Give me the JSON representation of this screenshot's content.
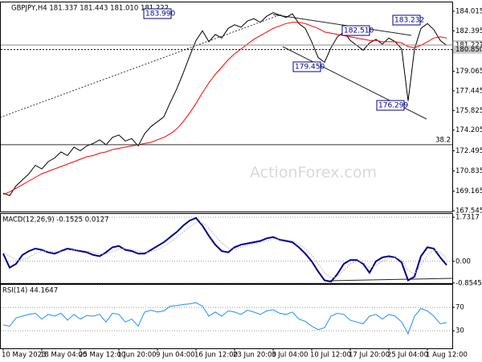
{
  "chart_data": [
    {
      "type": "line",
      "title": "GBPJPY,H4 181.337 181.443 181.010 181.222",
      "watermark": "ActionForex.com",
      "categories": [
        "10 May 2023",
        null,
        null,
        null,
        null,
        null,
        "18 May 04:00",
        null,
        null,
        null,
        null,
        null,
        "25 May 12:00",
        null,
        null,
        null,
        null,
        null,
        "1 Jun 20:00",
        null,
        null,
        null,
        null,
        null,
        "9 Jun 04:00",
        null,
        null,
        null,
        null,
        null,
        "16 Jun 12:00",
        null,
        null,
        null,
        null,
        null,
        "23 Jun 20:00",
        null,
        null,
        null,
        null,
        null,
        "3 Jul 04:00",
        null,
        null,
        null,
        null,
        null,
        "10 Jul 12:00",
        null,
        null,
        null,
        null,
        null,
        "17 Jul 20:00",
        null,
        null,
        null,
        null,
        null,
        "25 Jul 04:00",
        null,
        null,
        null,
        null,
        null,
        "1 Aug 12:00",
        null,
        null,
        null
      ],
      "series": [
        {
          "color": "#000000",
          "values": [
            169.0,
            168.8,
            169.6,
            170.1,
            170.6,
            171.3,
            171.0,
            171.6,
            171.9,
            172.4,
            172.1,
            172.8,
            172.5,
            172.9,
            173.1,
            173.4,
            173.0,
            173.6,
            173.8,
            173.3,
            173.5,
            172.9,
            173.9,
            174.5,
            174.9,
            175.3,
            176.5,
            177.6,
            178.9,
            180.3,
            181.6,
            182.4,
            181.5,
            182.1,
            181.8,
            182.6,
            182.9,
            182.7,
            183.2,
            183.4,
            183.1,
            183.6,
            183.9,
            183.7,
            183.5,
            183.8,
            183.0,
            182.6,
            181.5,
            180.2,
            179.8,
            181.0,
            181.9,
            182.3,
            181.6,
            181.2,
            180.8,
            181.4,
            181.7,
            181.3,
            181.8,
            181.5,
            180.9,
            176.6,
            180.9,
            182.6,
            183.0,
            182.5,
            181.6,
            181.2
          ]
        },
        {
          "color": "#ff0000",
          "values": [
            168.9,
            169.1,
            169.4,
            169.7,
            170.0,
            170.3,
            170.6,
            170.8,
            171.0,
            171.2,
            171.4,
            171.6,
            171.8,
            172.0,
            172.1,
            172.3,
            172.4,
            172.6,
            172.7,
            172.8,
            172.9,
            173.0,
            173.1,
            173.2,
            173.4,
            173.6,
            173.9,
            174.3,
            174.9,
            175.6,
            176.4,
            177.3,
            178.1,
            178.8,
            179.4,
            180.0,
            180.5,
            180.9,
            181.3,
            181.7,
            182.0,
            182.3,
            182.6,
            182.8,
            183.0,
            183.1,
            183.1,
            183.0,
            182.8,
            182.6,
            182.3,
            182.2,
            182.1,
            182.0,
            181.9,
            181.8,
            181.7,
            181.6,
            181.6,
            181.5,
            181.5,
            181.5,
            181.4,
            181.1,
            181.0,
            181.2,
            181.5,
            181.8,
            181.9,
            181.8
          ]
        }
      ],
      "ylim": [
        167.48,
        184.81
      ],
      "yticks": [
        184.015,
        182.395,
        179.065,
        177.445,
        175.825,
        174.205,
        172.495,
        170.835,
        169.165,
        167.545
      ],
      "price_markers": [
        181.222,
        {
          "value": 180.85,
          "label": "180.850"
        }
      ],
      "levels": [
        {
          "value": 173.0,
          "label": "38.2"
        }
      ],
      "annotations": [
        "183.990",
        "182.510",
        "183.232",
        "179.450",
        "176.299"
      ]
    },
    {
      "type": "line",
      "title": "MACD(12,26,9) -0.1525 0.0127",
      "series": [
        {
          "color": "#00008b",
          "values": [
            0.3,
            -0.25,
            -0.1,
            0.25,
            0.4,
            0.5,
            0.45,
            0.35,
            0.3,
            0.4,
            0.5,
            0.45,
            0.4,
            0.35,
            0.25,
            0.2,
            0.35,
            0.55,
            0.6,
            0.45,
            0.4,
            0.3,
            0.3,
            0.45,
            0.6,
            0.75,
            0.95,
            1.15,
            1.4,
            1.6,
            1.7,
            1.4,
            1.0,
            0.65,
            0.4,
            0.35,
            0.55,
            0.65,
            0.7,
            0.75,
            0.8,
            0.9,
            0.95,
            0.85,
            0.8,
            0.75,
            0.55,
            0.3,
            0.0,
            -0.4,
            -0.75,
            -0.8,
            -0.5,
            -0.1,
            0.05,
            0.05,
            -0.1,
            -0.45,
            0.0,
            0.15,
            0.2,
            0.15,
            -0.05,
            -0.75,
            -0.6,
            0.2,
            0.55,
            0.5,
            0.15,
            -0.15
          ]
        },
        {
          "color": "#b0b0b0",
          "dotted": true,
          "values": [
            0.35,
            0.2,
            0.05,
            0.05,
            0.15,
            0.3,
            0.4,
            0.4,
            0.38,
            0.38,
            0.42,
            0.45,
            0.44,
            0.4,
            0.35,
            0.28,
            0.28,
            0.38,
            0.48,
            0.5,
            0.46,
            0.4,
            0.35,
            0.38,
            0.45,
            0.58,
            0.75,
            0.95,
            1.15,
            1.35,
            1.52,
            1.52,
            1.3,
            1.0,
            0.72,
            0.52,
            0.48,
            0.55,
            0.62,
            0.68,
            0.74,
            0.8,
            0.88,
            0.88,
            0.84,
            0.8,
            0.68,
            0.5,
            0.25,
            -0.1,
            -0.45,
            -0.65,
            -0.6,
            -0.35,
            -0.1,
            0.0,
            -0.05,
            -0.25,
            -0.15,
            0.0,
            0.12,
            0.15,
            0.05,
            -0.35,
            -0.5,
            -0.15,
            0.25,
            0.45,
            0.35,
            0.1
          ]
        }
      ],
      "ylim": [
        -0.86,
        1.89
      ],
      "yticks": [
        1.7317,
        {
          "value": 0,
          "label": "0.00"
        },
        -0.8545
      ]
    },
    {
      "type": "line",
      "title": "RSI(14) 44.1647",
      "series": [
        {
          "color": "#1e90ff",
          "values": [
            40,
            38,
            52,
            55,
            58,
            60,
            50,
            58,
            55,
            60,
            48,
            58,
            50,
            56,
            55,
            58,
            45,
            60,
            58,
            45,
            50,
            38,
            62,
            65,
            62,
            64,
            72,
            73,
            75,
            76,
            78,
            72,
            55,
            62,
            55,
            64,
            62,
            58,
            65,
            62,
            58,
            64,
            66,
            60,
            58,
            62,
            50,
            46,
            38,
            32,
            35,
            55,
            60,
            58,
            48,
            45,
            42,
            55,
            58,
            50,
            58,
            55,
            45,
            25,
            55,
            68,
            64,
            55,
            42,
            44
          ]
        }
      ],
      "ylim": [
        0,
        110
      ],
      "yticks": [
        70,
        30
      ]
    }
  ]
}
